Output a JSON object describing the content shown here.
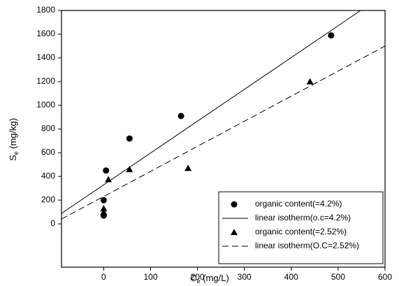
{
  "chart_data": {
    "type": "scatter",
    "xlabel": [
      "C",
      "e",
      " (mg/L)"
    ],
    "ylabel": [
      "S",
      "e",
      " (mg/kg)"
    ],
    "xlim": [
      -90,
      600
    ],
    "ylim": [
      -365,
      1800
    ],
    "xticks": [
      0,
      100,
      200,
      300,
      400,
      500,
      600
    ],
    "yticks": [
      0,
      200,
      400,
      600,
      800,
      1000,
      1200,
      1400,
      1600,
      1800
    ],
    "grid": false,
    "legend": "lower right",
    "series": [
      {
        "name": "organic content(=4.2%)",
        "color": "#000000",
        "marker": "circle",
        "x": [
          0,
          0,
          5,
          55,
          165,
          485
        ],
        "values": [
          70,
          200,
          450,
          720,
          910,
          1590
        ]
      },
      {
        "name": "linear isotherm(o.c=4.2%)",
        "color": "#000000",
        "line": "solid",
        "x": [
          -90,
          548
        ],
        "values": [
          88,
          1800
        ]
      },
      {
        "name": "organic content(=2.52%)",
        "color": "#000000",
        "marker": "triangle",
        "x": [
          0,
          0,
          10,
          55,
          180,
          440
        ],
        "values": [
          100,
          130,
          375,
          460,
          470,
          1200
        ]
      },
      {
        "name": "linear isotherm(O.C=2.52%)",
        "color": "#000000",
        "line": "dashed",
        "x": [
          -90,
          600
        ],
        "values": [
          41,
          1500
        ]
      }
    ]
  }
}
